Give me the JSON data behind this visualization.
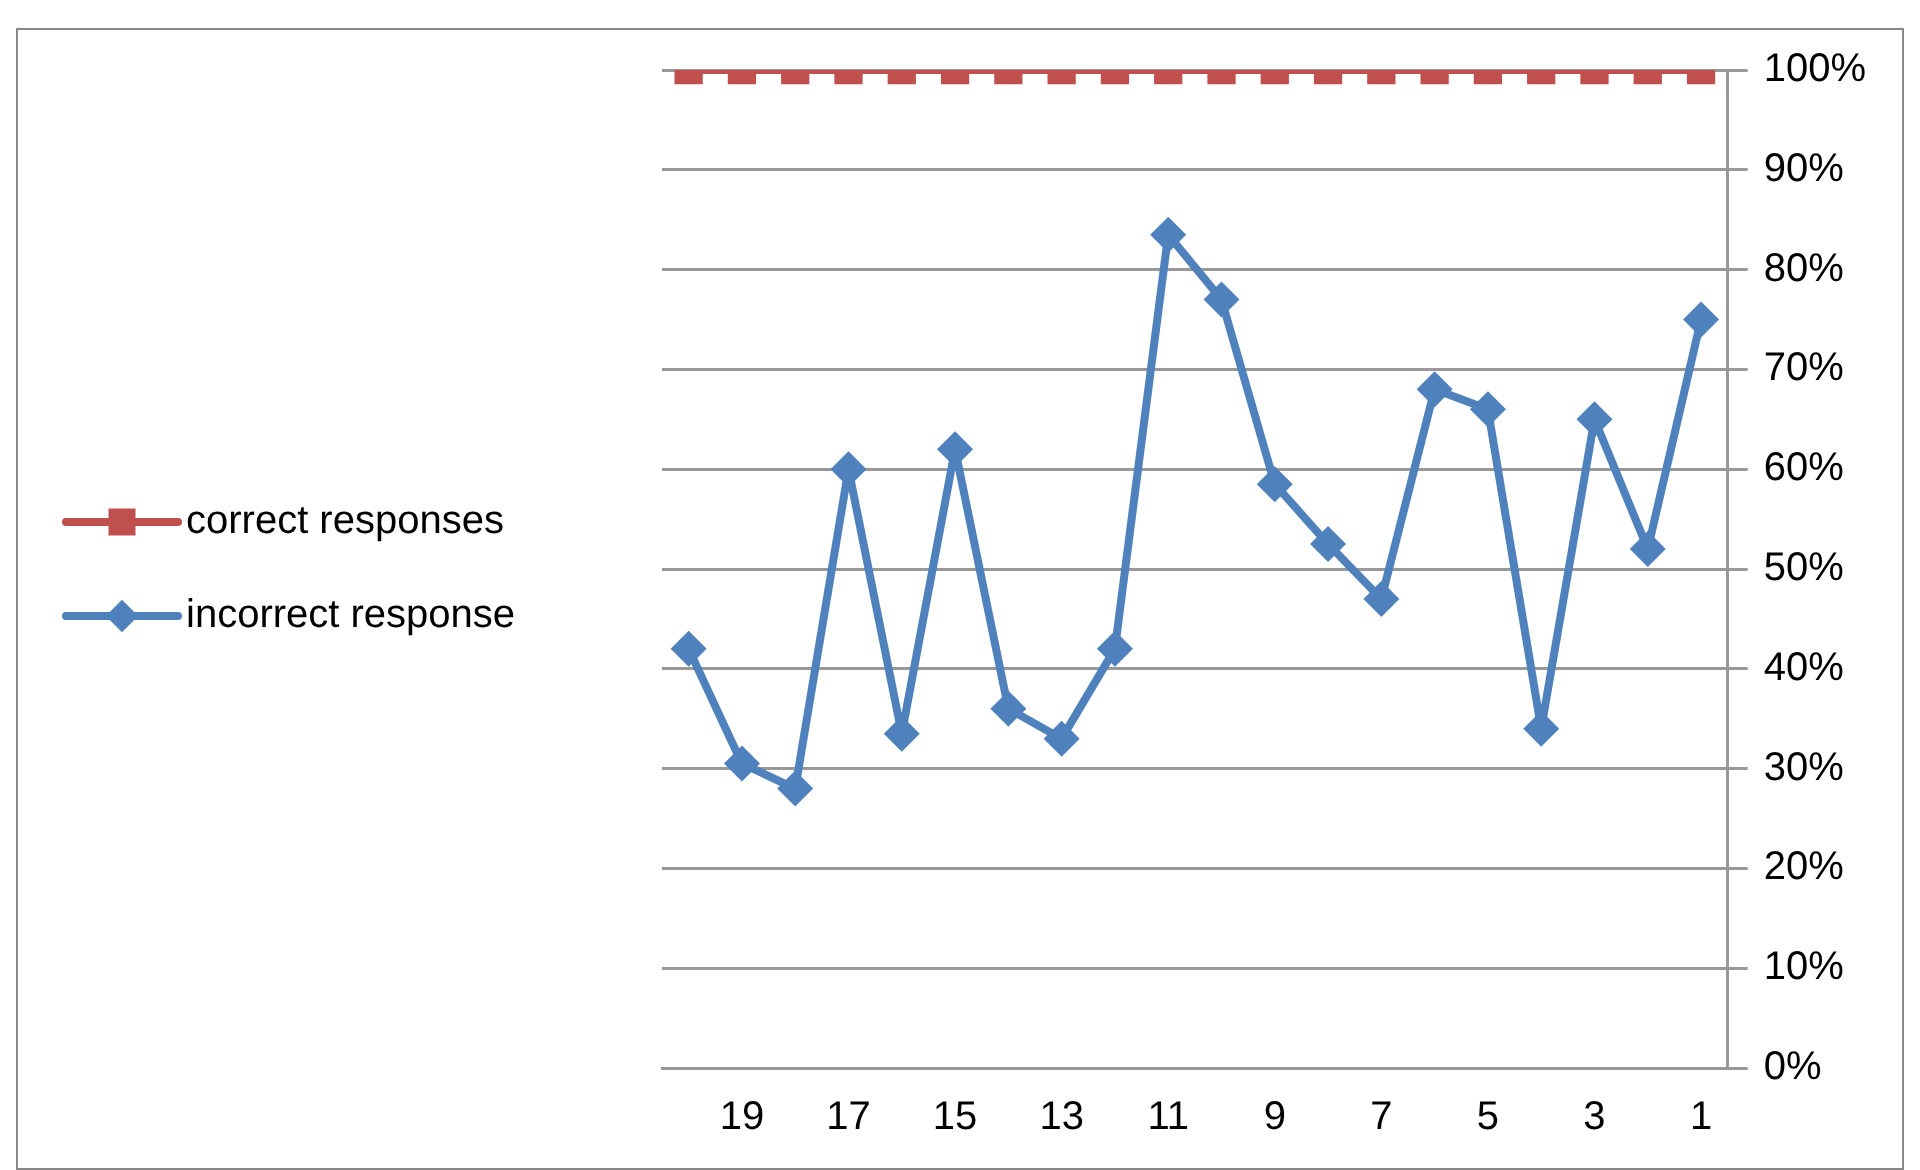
{
  "chart_data": {
    "type": "line",
    "categories": [
      null,
      "19",
      null,
      "17",
      null,
      "15",
      null,
      "13",
      null,
      "11",
      null,
      "9",
      null,
      "7",
      null,
      "5",
      null,
      "3",
      null,
      "1"
    ],
    "series": [
      {
        "name": "correct responses",
        "color": "#c0504d",
        "marker": "square",
        "values": [
          100,
          100,
          100,
          100,
          100,
          100,
          100,
          100,
          100,
          100,
          100,
          100,
          100,
          100,
          100,
          100,
          100,
          100,
          100,
          100
        ]
      },
      {
        "name": "incorrect response",
        "color": "#4f81bd",
        "marker": "diamond",
        "values": [
          42,
          30.5,
          28,
          60,
          33.5,
          62,
          36,
          33,
          42,
          83.5,
          77,
          58.5,
          52.5,
          47,
          68,
          66,
          34,
          65,
          52,
          75
        ]
      }
    ],
    "ylim": [
      0,
      100
    ],
    "yticks": [
      {
        "value": 0,
        "label": "0%"
      },
      {
        "value": 10,
        "label": "10%"
      },
      {
        "value": 20,
        "label": "20%"
      },
      {
        "value": 30,
        "label": "30%"
      },
      {
        "value": 40,
        "label": "40%"
      },
      {
        "value": 50,
        "label": "50%"
      },
      {
        "value": 60,
        "label": "60%"
      },
      {
        "value": 70,
        "label": "70%"
      },
      {
        "value": 80,
        "label": "80%"
      },
      {
        "value": 90,
        "label": "90%"
      },
      {
        "value": 100,
        "label": "100%"
      }
    ],
    "grid": "y",
    "legend": "left",
    "line_style": "solid"
  }
}
